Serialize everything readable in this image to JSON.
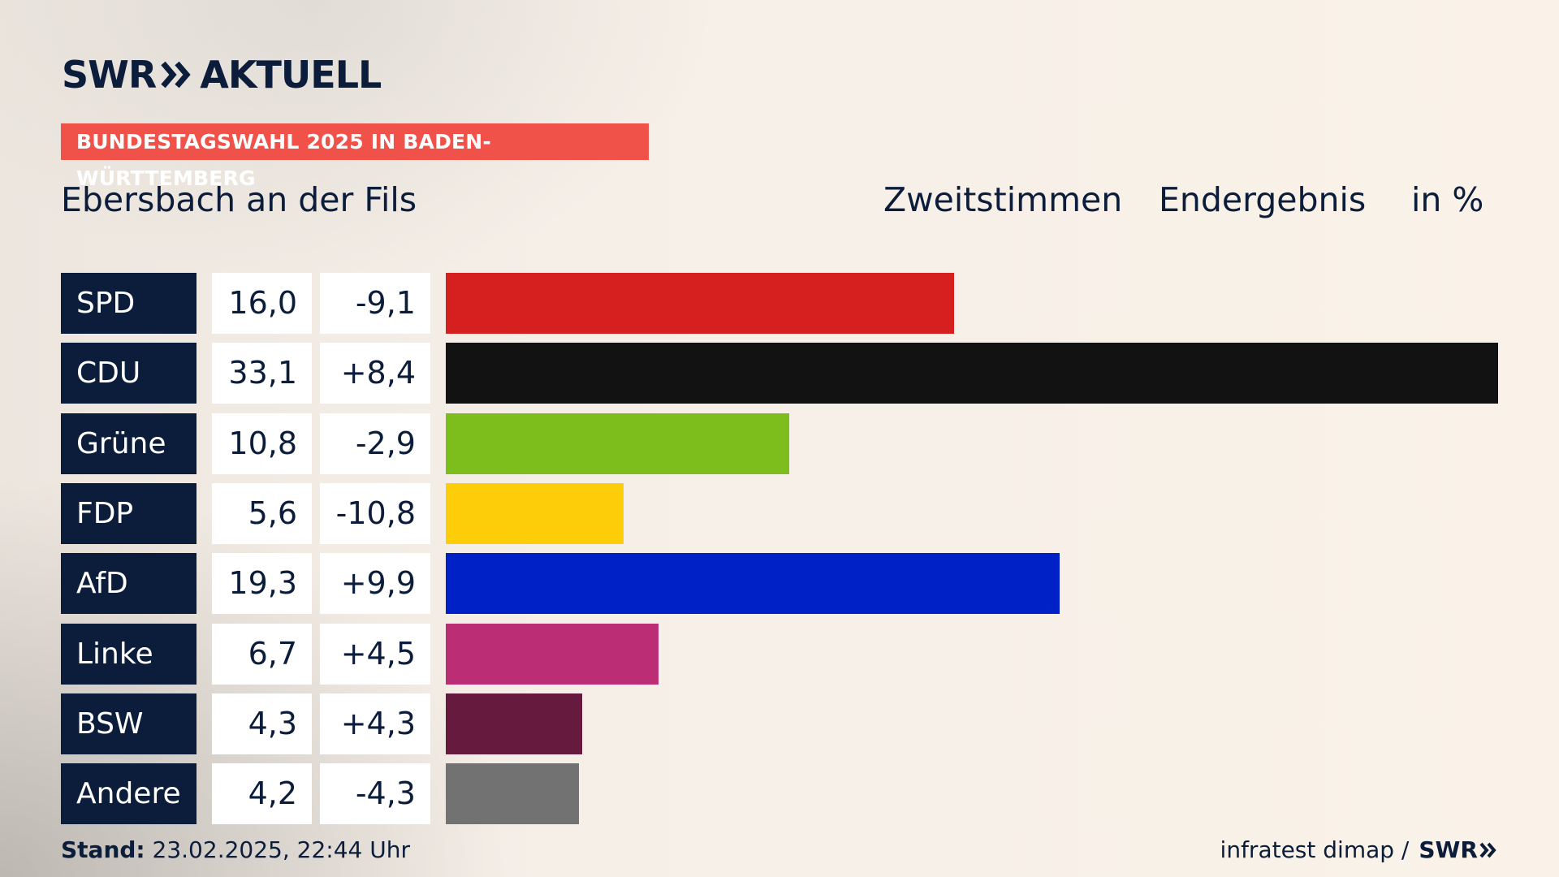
{
  "brand": {
    "left": "SWR",
    "right": "AKTUELL"
  },
  "banner": "BUNDESTAGSWAHL 2025 IN BADEN-WÜRTTEMBERG",
  "region": "Ebersbach an der Fils",
  "header": {
    "vote_type": "Zweitstimmen",
    "status": "Endergebnis",
    "unit": "in %"
  },
  "colors": {
    "navy": "#0b1d3a",
    "banner": "#f0524a"
  },
  "chart_data": {
    "type": "bar",
    "orientation": "horizontal",
    "categories": [
      "SPD",
      "CDU",
      "Grüne",
      "FDP",
      "AfD",
      "Linke",
      "BSW",
      "Andere"
    ],
    "values": [
      16.0,
      33.1,
      10.8,
      5.6,
      19.3,
      6.7,
      4.3,
      4.2
    ],
    "value_labels": [
      "16,0",
      "33,1",
      "10,8",
      "5,6",
      "19,3",
      "6,7",
      "4,3",
      "4,2"
    ],
    "diff_labels": [
      "-9,1",
      "+8,4",
      "-2,9",
      "-10,8",
      "+9,9",
      "+4,5",
      "+4,3",
      "-4,3"
    ],
    "bar_colors": [
      "#d61f1f",
      "#121212",
      "#7dbd1c",
      "#fecd0a",
      "#0021c5",
      "#bb2e75",
      "#661a3d",
      "#727272"
    ],
    "xlim": [
      0,
      33.1
    ]
  },
  "footer": {
    "stand_label": "Stand:",
    "stand_value": "23.02.2025, 22:44 Uhr",
    "source": "infratest dimap /",
    "source_brand": "SWR"
  }
}
